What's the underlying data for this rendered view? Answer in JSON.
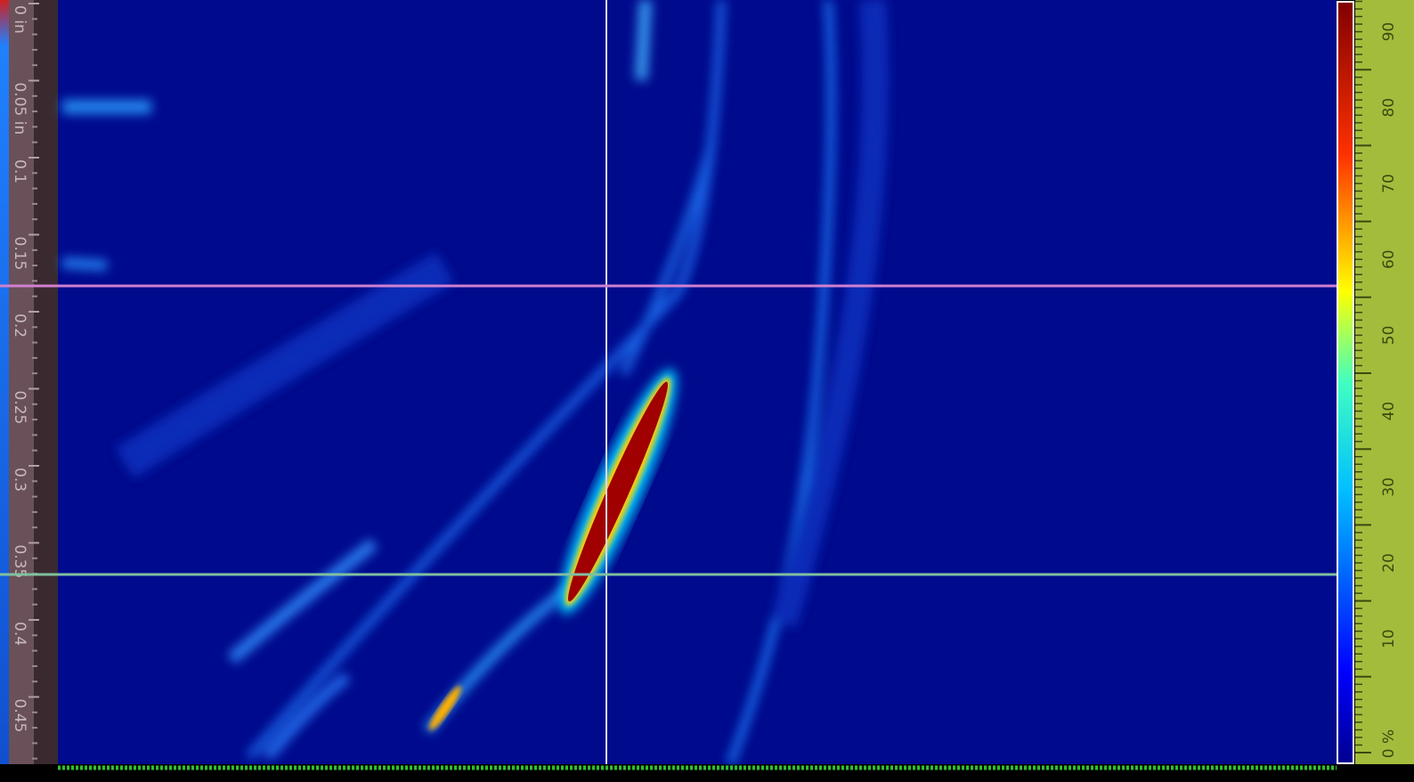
{
  "depth_ruler": {
    "labels": [
      "0 in",
      "0.05 in",
      "0.1",
      "0.15",
      "0.2",
      "0.25",
      "0.3",
      "0.35",
      "0.4",
      "0.45"
    ]
  },
  "amplitude_scale": {
    "labels": [
      "0 %",
      "10",
      "20",
      "30",
      "40",
      "50",
      "60",
      "70",
      "80",
      "90"
    ]
  }
}
